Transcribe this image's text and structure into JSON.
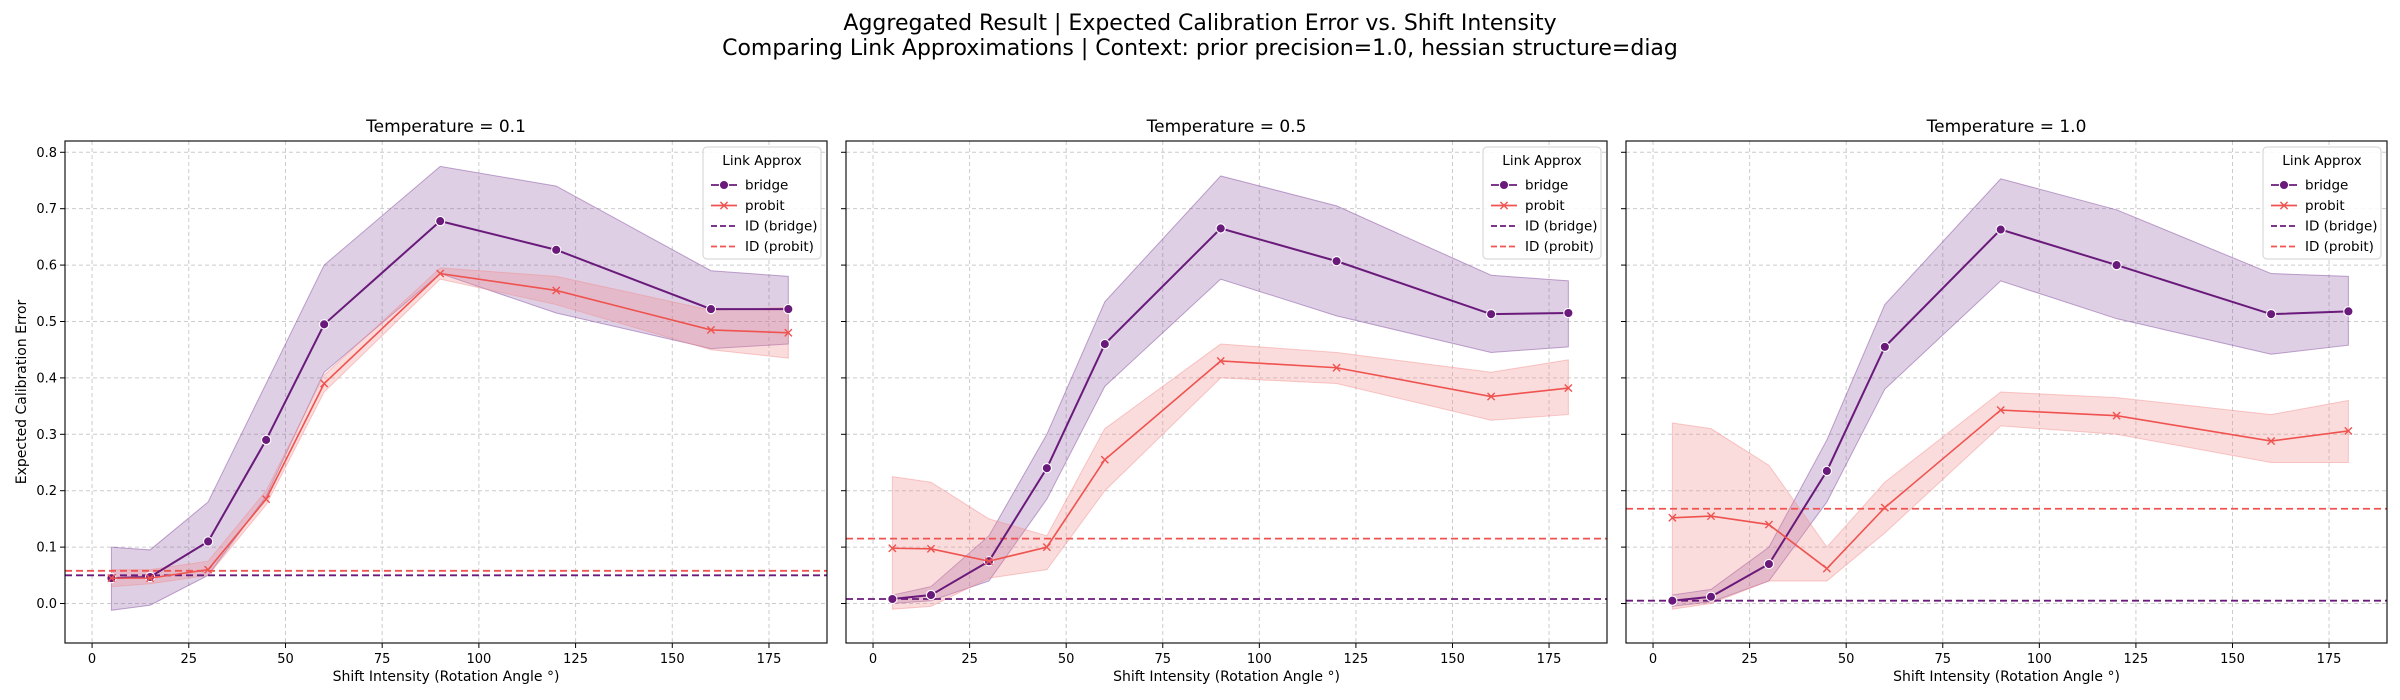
{
  "suptitle": {
    "line1": "Aggregated Result | Expected Calibration Error vs. Shift Intensity",
    "line2": "Comparing Link Approximations | Context: prior precision=1.0, hessian structure=diag"
  },
  "colors": {
    "bridge": "#6a1a7a",
    "probit": "#ef5350",
    "bridge_band": "#7b3f96",
    "probit_band": "#f28b8b"
  },
  "chart_data": [
    {
      "type": "line",
      "title": "Temperature = 0.1",
      "xlabel": "Shift Intensity (Rotation Angle °)",
      "ylabel": "Expected Calibration Error",
      "xlim": [
        -7,
        190
      ],
      "ylim": [
        -0.07,
        0.82
      ],
      "xticks": [
        0,
        25,
        50,
        75,
        100,
        125,
        150,
        175
      ],
      "yticks": [
        0.0,
        0.1,
        0.2,
        0.3,
        0.4,
        0.5,
        0.6,
        0.7,
        0.8
      ],
      "grid": true,
      "legend": {
        "title": "Link Approx",
        "placement": "top-right",
        "entries": [
          "bridge",
          "probit",
          "ID (bridge)",
          "ID (probit)"
        ]
      },
      "x": [
        5,
        15,
        30,
        45,
        60,
        90,
        120,
        160,
        180
      ],
      "series": [
        {
          "name": "bridge",
          "marker": "circle",
          "values": [
            0.045,
            0.047,
            0.11,
            0.29,
            0.495,
            0.678,
            0.627,
            0.522,
            0.522
          ],
          "lower": [
            -0.012,
            -0.003,
            0.05,
            0.19,
            0.41,
            0.585,
            0.515,
            0.452,
            0.46
          ],
          "upper": [
            0.1,
            0.095,
            0.18,
            0.39,
            0.6,
            0.775,
            0.74,
            0.59,
            0.58
          ]
        },
        {
          "name": "probit",
          "marker": "x",
          "values": [
            0.045,
            0.045,
            0.06,
            0.185,
            0.39,
            0.585,
            0.555,
            0.485,
            0.48
          ],
          "lower": [
            0.03,
            0.035,
            0.05,
            0.175,
            0.375,
            0.575,
            0.53,
            0.45,
            0.435
          ],
          "upper": [
            0.06,
            0.06,
            0.075,
            0.2,
            0.405,
            0.595,
            0.58,
            0.52,
            0.525
          ]
        }
      ],
      "reference_lines": [
        {
          "name": "ID (bridge)",
          "value": 0.05
        },
        {
          "name": "ID (probit)",
          "value": 0.058
        }
      ]
    },
    {
      "type": "line",
      "title": "Temperature = 0.5",
      "xlabel": "Shift Intensity (Rotation Angle °)",
      "ylabel": "",
      "xlim": [
        -7,
        190
      ],
      "ylim": [
        -0.07,
        0.82
      ],
      "xticks": [
        0,
        25,
        50,
        75,
        100,
        125,
        150,
        175
      ],
      "yticks": [
        0.0,
        0.1,
        0.2,
        0.3,
        0.4,
        0.5,
        0.6,
        0.7,
        0.8
      ],
      "grid": true,
      "legend": {
        "title": "Link Approx",
        "placement": "top-right",
        "entries": [
          "bridge",
          "probit",
          "ID (bridge)",
          "ID (probit)"
        ]
      },
      "x": [
        5,
        15,
        30,
        45,
        60,
        90,
        120,
        160,
        180
      ],
      "series": [
        {
          "name": "bridge",
          "marker": "circle",
          "values": [
            0.008,
            0.015,
            0.075,
            0.24,
            0.46,
            0.665,
            0.607,
            0.513,
            0.515
          ],
          "lower": [
            0.0,
            0.005,
            0.04,
            0.185,
            0.385,
            0.575,
            0.51,
            0.445,
            0.455
          ],
          "upper": [
            0.015,
            0.03,
            0.12,
            0.3,
            0.535,
            0.758,
            0.705,
            0.582,
            0.572
          ]
        },
        {
          "name": "probit",
          "marker": "x",
          "values": [
            0.098,
            0.097,
            0.075,
            0.1,
            0.255,
            0.43,
            0.418,
            0.367,
            0.382
          ],
          "lower": [
            -0.01,
            -0.005,
            0.045,
            0.06,
            0.2,
            0.4,
            0.39,
            0.325,
            0.335
          ],
          "upper": [
            0.225,
            0.215,
            0.15,
            0.12,
            0.31,
            0.46,
            0.445,
            0.41,
            0.432
          ]
        }
      ],
      "reference_lines": [
        {
          "name": "ID (bridge)",
          "value": 0.008
        },
        {
          "name": "ID (probit)",
          "value": 0.115
        }
      ]
    },
    {
      "type": "line",
      "title": "Temperature = 1.0",
      "xlabel": "Shift Intensity (Rotation Angle °)",
      "ylabel": "",
      "xlim": [
        -7,
        190
      ],
      "ylim": [
        -0.07,
        0.82
      ],
      "xticks": [
        0,
        25,
        50,
        75,
        100,
        125,
        150,
        175
      ],
      "yticks": [
        0.0,
        0.1,
        0.2,
        0.3,
        0.4,
        0.5,
        0.6,
        0.7,
        0.8
      ],
      "grid": true,
      "legend": {
        "title": "Link Approx",
        "placement": "top-right",
        "entries": [
          "bridge",
          "probit",
          "ID (bridge)",
          "ID (probit)"
        ]
      },
      "x": [
        5,
        15,
        30,
        45,
        60,
        90,
        120,
        160,
        180
      ],
      "series": [
        {
          "name": "bridge",
          "marker": "circle",
          "values": [
            0.005,
            0.012,
            0.07,
            0.235,
            0.455,
            0.663,
            0.6,
            0.513,
            0.518
          ],
          "lower": [
            -0.005,
            0.003,
            0.04,
            0.18,
            0.38,
            0.572,
            0.505,
            0.442,
            0.458
          ],
          "upper": [
            0.015,
            0.025,
            0.1,
            0.29,
            0.53,
            0.753,
            0.698,
            0.585,
            0.58
          ]
        },
        {
          "name": "probit",
          "marker": "x",
          "values": [
            0.152,
            0.155,
            0.14,
            0.062,
            0.17,
            0.343,
            0.333,
            0.288,
            0.306
          ],
          "lower": [
            -0.01,
            0.0,
            0.04,
            0.04,
            0.125,
            0.315,
            0.3,
            0.25,
            0.25
          ],
          "upper": [
            0.32,
            0.31,
            0.245,
            0.1,
            0.215,
            0.375,
            0.365,
            0.335,
            0.36
          ]
        }
      ],
      "reference_lines": [
        {
          "name": "ID (bridge)",
          "value": 0.005
        },
        {
          "name": "ID (probit)",
          "value": 0.168
        }
      ]
    }
  ]
}
